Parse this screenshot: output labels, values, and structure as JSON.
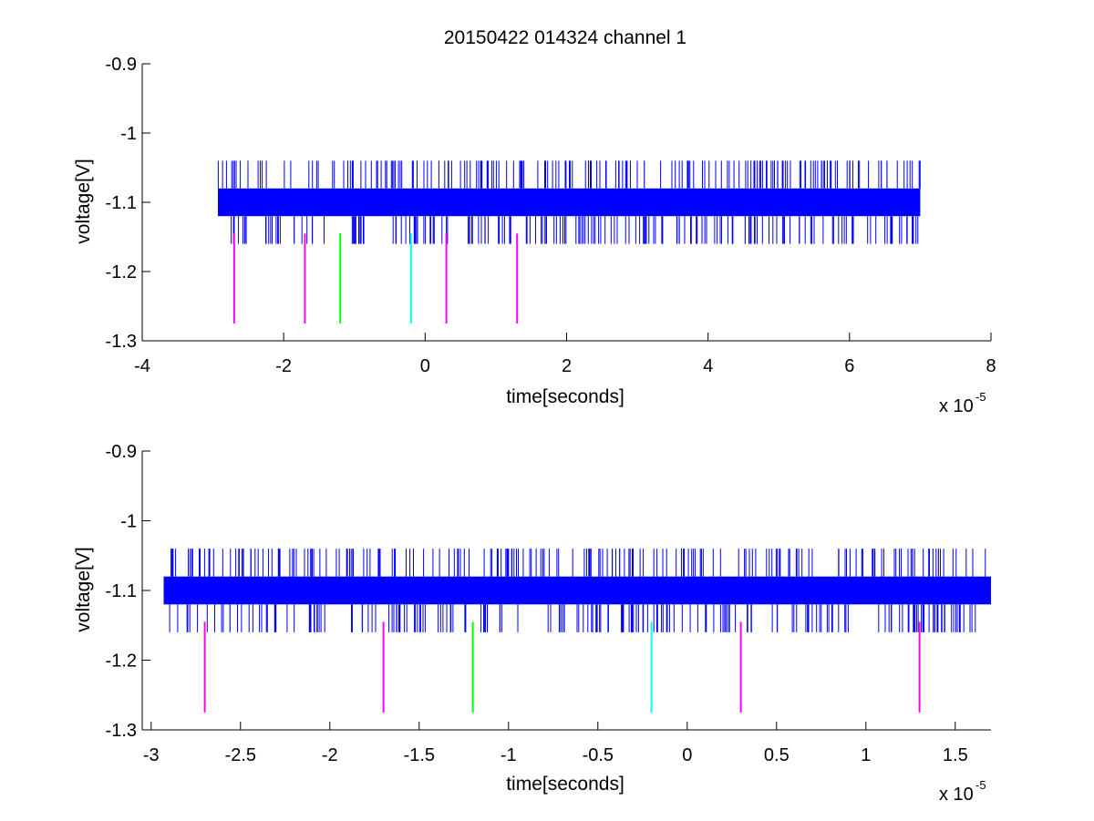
{
  "chart_data": [
    {
      "type": "line",
      "title": "20150422 014324 channel 1",
      "xlabel": "time[seconds]",
      "ylabel": "voltage[V]",
      "x_exponent_base": "x 10",
      "x_exponent_power": "-5",
      "xlim": [
        -4,
        8
      ],
      "ylim": [
        -1.3,
        -0.9
      ],
      "x_ticks": [
        -4,
        -2,
        0,
        2,
        4,
        6,
        8
      ],
      "x_tick_labels": [
        "-4",
        "-2",
        "0",
        "2",
        "4",
        "6",
        "8"
      ],
      "y_ticks": [
        -1.3,
        -1.2,
        -1.1,
        -1,
        -0.9
      ],
      "y_tick_labels": [
        "-1.3",
        "-1.2",
        "-1.1",
        "-1",
        "-0.9"
      ],
      "signal": {
        "color": "#0000ff",
        "x_range": [
          -2.93,
          7.0
        ],
        "band": [
          -1.12,
          -1.08
        ],
        "spike_high": -1.04,
        "spike_low": -1.16
      },
      "markers": [
        {
          "x": -2.7,
          "y_top": -1.145,
          "y_bottom": -1.275,
          "color": "#ff00ff"
        },
        {
          "x": -1.7,
          "y_top": -1.145,
          "y_bottom": -1.275,
          "color": "#ff00ff"
        },
        {
          "x": -1.2,
          "y_top": -1.145,
          "y_bottom": -1.275,
          "color": "#00ff00"
        },
        {
          "x": -0.2,
          "y_top": -1.145,
          "y_bottom": -1.275,
          "color": "#00ffff"
        },
        {
          "x": 0.3,
          "y_top": -1.145,
          "y_bottom": -1.275,
          "color": "#ff00ff"
        },
        {
          "x": 1.3,
          "y_top": -1.145,
          "y_bottom": -1.275,
          "color": "#ff00ff"
        }
      ],
      "grid": false
    },
    {
      "type": "line",
      "title": "",
      "xlabel": "time[seconds]",
      "ylabel": "voltage[V]",
      "x_exponent_base": "x 10",
      "x_exponent_power": "-5",
      "xlim": [
        -3.05,
        1.7
      ],
      "ylim": [
        -1.3,
        -0.9
      ],
      "x_ticks": [
        -3,
        -2.5,
        -2,
        -1.5,
        -1,
        -0.5,
        0,
        0.5,
        1,
        1.5
      ],
      "x_tick_labels": [
        "-3",
        "-2.5",
        "-2",
        "-1.5",
        "-1",
        "-0.5",
        "0",
        "0.5",
        "1",
        "1.5"
      ],
      "y_ticks": [
        -1.3,
        -1.2,
        -1.1,
        -1,
        -0.9
      ],
      "y_tick_labels": [
        "-1.3",
        "-1.2",
        "-1.1",
        "-1",
        "-0.9"
      ],
      "signal": {
        "color": "#0000ff",
        "x_range": [
          -2.93,
          1.7
        ],
        "band": [
          -1.12,
          -1.08
        ],
        "spike_high": -1.04,
        "spike_low": -1.16
      },
      "markers": [
        {
          "x": -2.7,
          "y_top": -1.145,
          "y_bottom": -1.275,
          "color": "#ff00ff"
        },
        {
          "x": -1.7,
          "y_top": -1.145,
          "y_bottom": -1.275,
          "color": "#ff00ff"
        },
        {
          "x": -1.2,
          "y_top": -1.145,
          "y_bottom": -1.275,
          "color": "#00ff00"
        },
        {
          "x": -0.2,
          "y_top": -1.145,
          "y_bottom": -1.275,
          "color": "#00ffff"
        },
        {
          "x": 0.3,
          "y_top": -1.145,
          "y_bottom": -1.275,
          "color": "#ff00ff"
        },
        {
          "x": 1.3,
          "y_top": -1.145,
          "y_bottom": -1.275,
          "color": "#ff00ff"
        }
      ],
      "grid": false
    }
  ]
}
